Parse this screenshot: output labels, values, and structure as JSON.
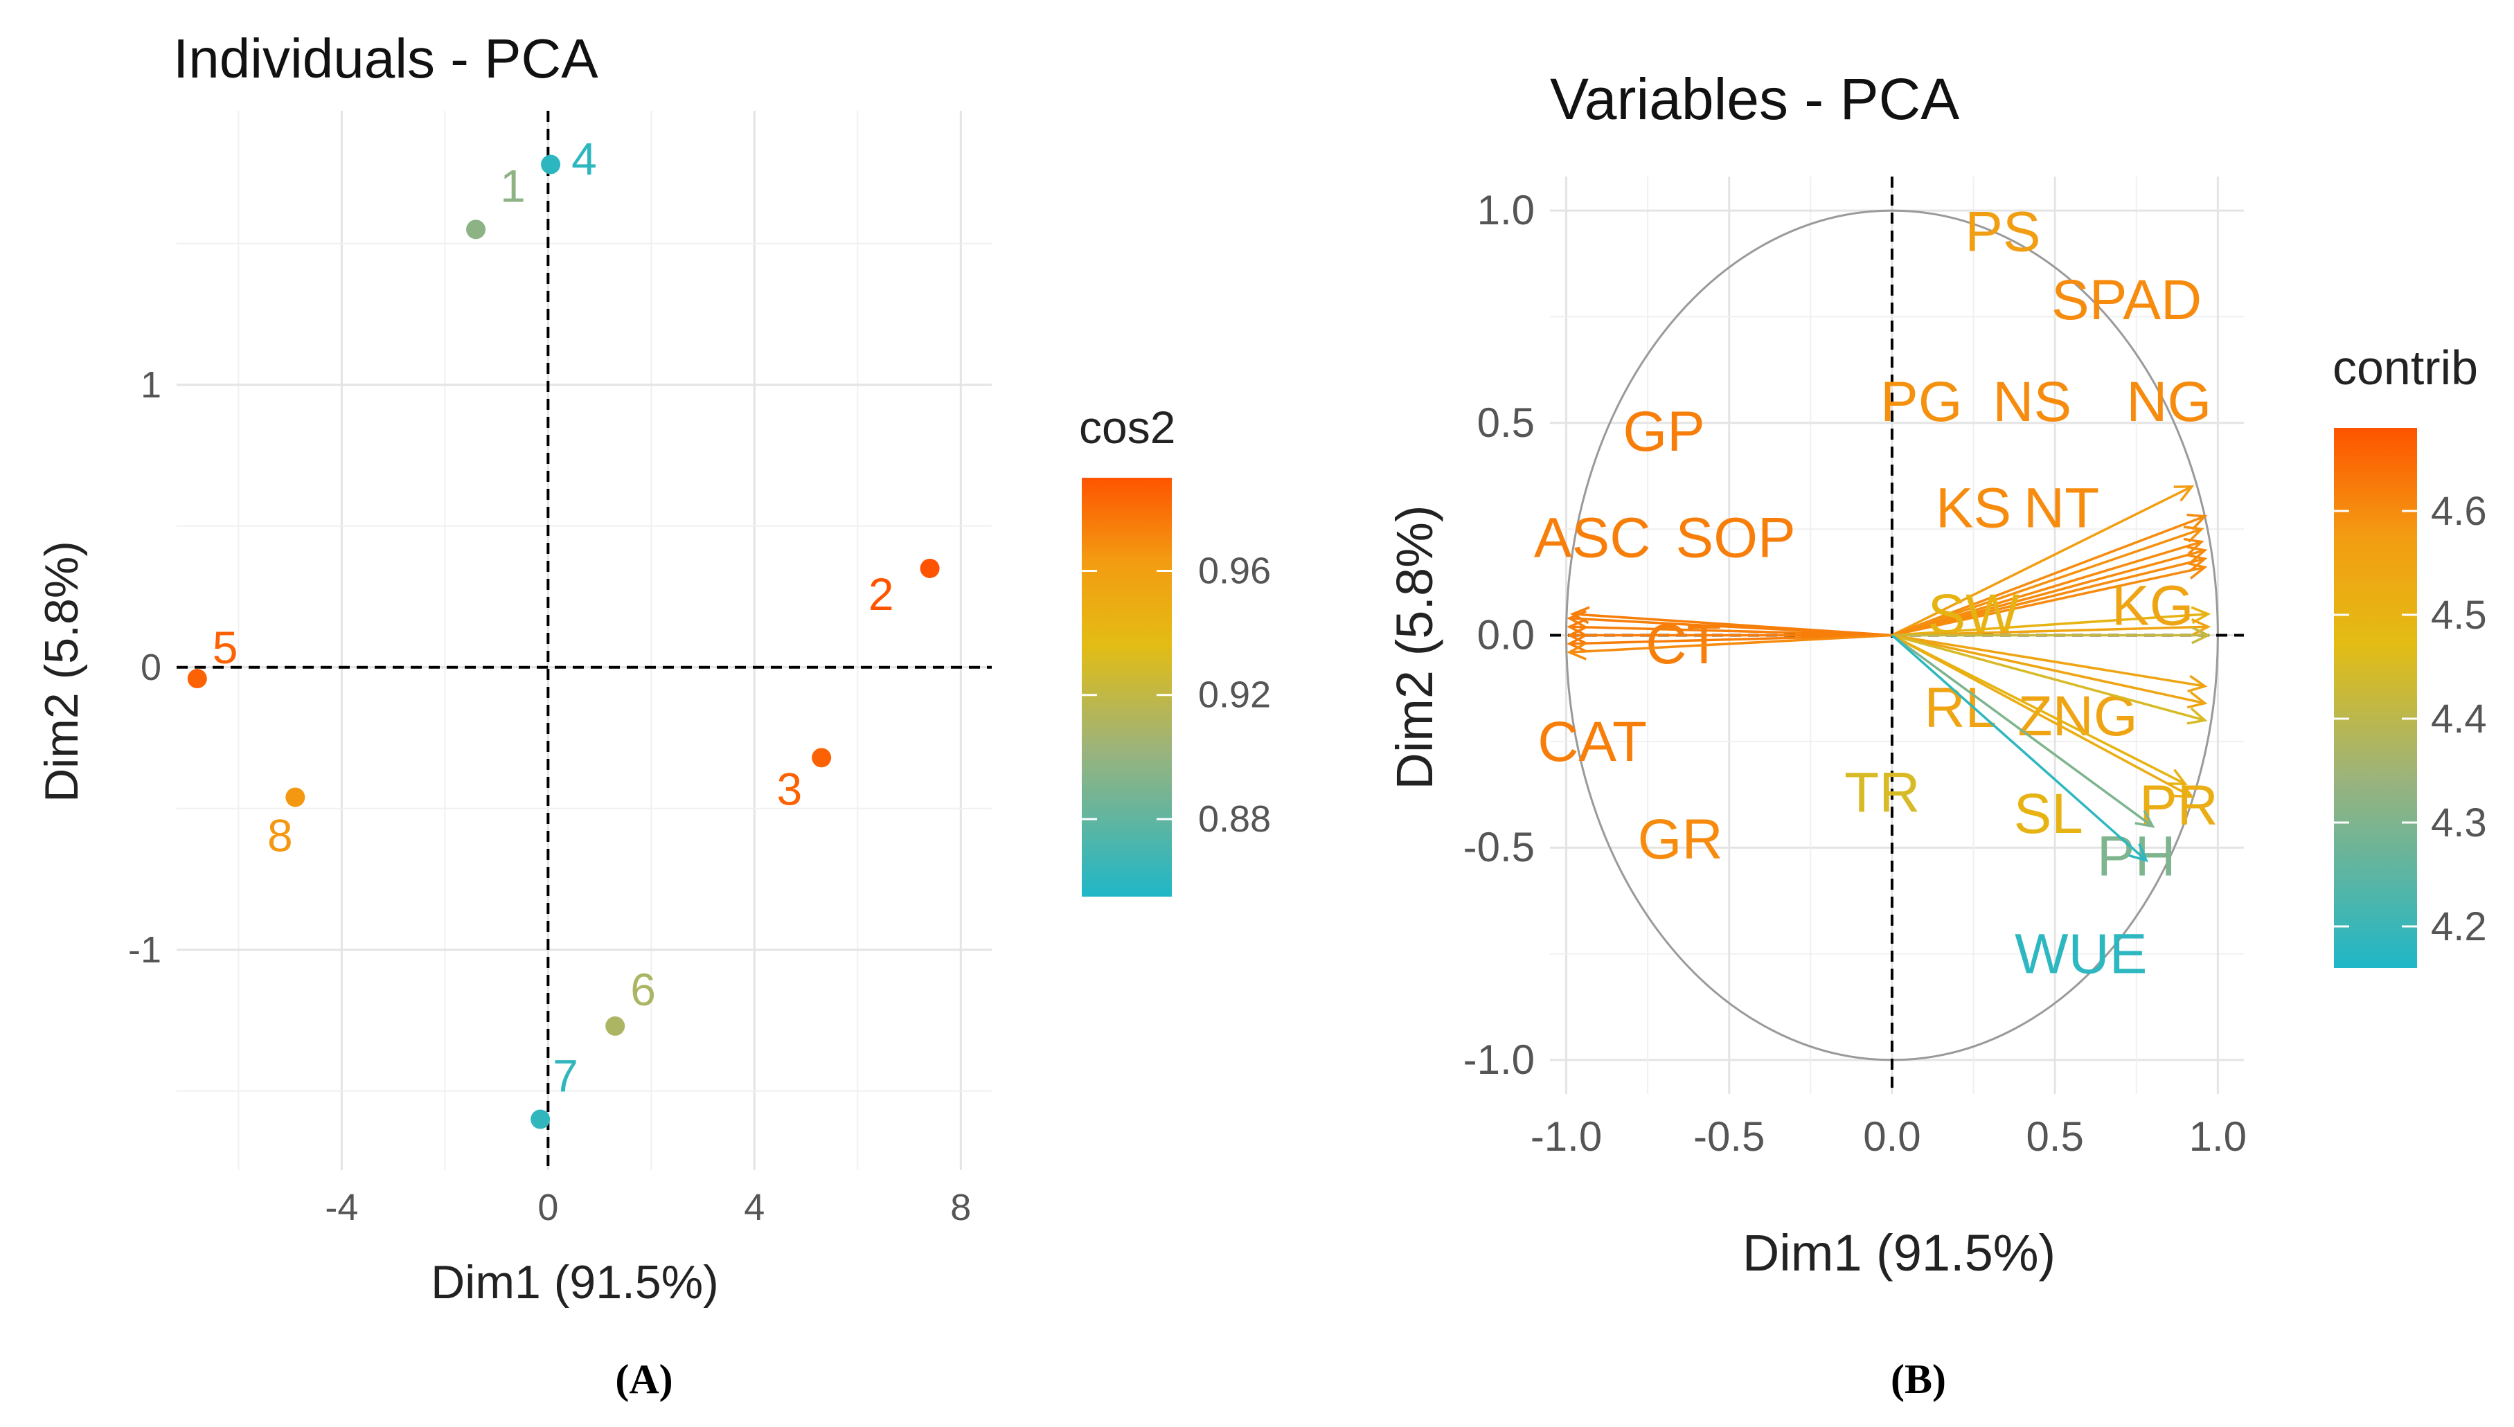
{
  "chart_data": [
    {
      "type": "scatter",
      "title": "Individuals - PCA",
      "xlabel": "Dim1 (91.5%)",
      "ylabel": "Dim2 (5.8%)",
      "xlim": [
        -7.2,
        8.6
      ],
      "ylim": [
        -1.78,
        1.97
      ],
      "x_ticks": [
        -4,
        0,
        4,
        8
      ],
      "x_tick_labels": [
        "-4",
        "0",
        "4",
        "8"
      ],
      "y_ticks": [
        -1,
        0,
        1
      ],
      "y_tick_labels": [
        "-1",
        "0",
        "1"
      ],
      "grid": true,
      "legend": {
        "title": "cos2",
        "placement": "right",
        "ticks": [
          0.88,
          0.92,
          0.96
        ],
        "tick_labels": [
          "0.88",
          "0.92",
          "0.96"
        ],
        "range": [
          0.855,
          0.99
        ]
      },
      "points": [
        {
          "label": "1",
          "x": -1.4,
          "y": 1.55,
          "cos2": 0.897
        },
        {
          "label": "2",
          "x": 7.4,
          "y": 0.35,
          "cos2": 0.99
        },
        {
          "label": "3",
          "x": 5.3,
          "y": -0.32,
          "cos2": 0.985
        },
        {
          "label": "4",
          "x": 0.05,
          "y": 1.78,
          "cos2": 0.86
        },
        {
          "label": "5",
          "x": -6.8,
          "y": -0.04,
          "cos2": 0.985
        },
        {
          "label": "6",
          "x": 1.3,
          "y": -1.27,
          "cos2": 0.91
        },
        {
          "label": "7",
          "x": -0.15,
          "y": -1.6,
          "cos2": 0.862
        },
        {
          "label": "8",
          "x": -4.9,
          "y": -0.46,
          "cos2": 0.965
        }
      ],
      "panel_label": "(A)"
    },
    {
      "type": "scatter",
      "title": "Variables - PCA",
      "xlabel": "Dim1 (91.5%)",
      "ylabel": "Dim2 (5.8%)",
      "xlim": [
        -1.05,
        1.08
      ],
      "ylim": [
        -1.08,
        1.08
      ],
      "x_ticks": [
        -1,
        -0.5,
        0,
        0.5,
        1
      ],
      "x_tick_labels": [
        "-1.0",
        "-0.5",
        "0.0",
        "0.5",
        "1.0"
      ],
      "y_ticks": [
        -1,
        -0.5,
        0,
        0.5,
        1
      ],
      "y_tick_labels": [
        "-1.0",
        "-0.5",
        "0.0",
        "0.5",
        "1.0"
      ],
      "grid": true,
      "legend": {
        "title": "contrib",
        "placement": "right",
        "ticks": [
          4.2,
          4.3,
          4.4,
          4.5,
          4.6
        ],
        "tick_labels": [
          "4.2",
          "4.3",
          "4.4",
          "4.5",
          "4.6"
        ],
        "range": [
          4.16,
          4.68
        ]
      },
      "vectors": [
        {
          "label": "PS",
          "x": 0.92,
          "y": 0.35,
          "lx": 0.34,
          "ly": 0.95,
          "contrib": 4.57
        },
        {
          "label": "SPAD",
          "x": 0.96,
          "y": 0.28,
          "lx": 0.72,
          "ly": 0.79,
          "contrib": 4.6
        },
        {
          "label": "PG",
          "x": 0.95,
          "y": 0.25,
          "lx": 0.09,
          "ly": 0.55,
          "contrib": 4.59
        },
        {
          "label": "NS",
          "x": 0.95,
          "y": 0.22,
          "lx": 0.43,
          "ly": 0.55,
          "contrib": 4.6
        },
        {
          "label": "NG",
          "x": 0.96,
          "y": 0.2,
          "lx": 0.85,
          "ly": 0.55,
          "contrib": 4.6
        },
        {
          "label": "KS",
          "x": 0.96,
          "y": 0.18,
          "lx": 0.25,
          "ly": 0.3,
          "contrib": 4.6
        },
        {
          "label": "NT",
          "x": 0.96,
          "y": 0.16,
          "lx": 0.52,
          "ly": 0.3,
          "contrib": 4.6
        },
        {
          "label": "GP",
          "x": -0.98,
          "y": 0.05,
          "lx": -0.7,
          "ly": 0.48,
          "contrib": 4.62
        },
        {
          "label": "ASC",
          "x": -0.99,
          "y": 0.04,
          "lx": -0.92,
          "ly": 0.23,
          "contrib": 4.62
        },
        {
          "label": "SOP",
          "x": -0.99,
          "y": 0.02,
          "lx": -0.48,
          "ly": 0.23,
          "contrib": 4.62
        },
        {
          "label": "CT",
          "x": -0.99,
          "y": 0.0,
          "lx": -0.64,
          "ly": -0.02,
          "contrib": 4.62
        },
        {
          "label": "CAT",
          "x": -0.99,
          "y": -0.02,
          "lx": -0.92,
          "ly": -0.25,
          "contrib": 4.62
        },
        {
          "label": "GR",
          "x": -0.99,
          "y": -0.04,
          "lx": -0.65,
          "ly": -0.48,
          "contrib": 4.6
        },
        {
          "label": "SW",
          "x": 0.97,
          "y": 0.05,
          "lx": 0.25,
          "ly": 0.05,
          "contrib": 4.5
        },
        {
          "label": "KG",
          "x": 0.97,
          "y": 0.02,
          "lx": 0.8,
          "ly": 0.07,
          "contrib": 4.55
        },
        {
          "label": "",
          "x": 0.97,
          "y": 0.0,
          "contrib": 4.42
        },
        {
          "label": "RL",
          "x": 0.96,
          "y": -0.12,
          "lx": 0.21,
          "ly": -0.17,
          "contrib": 4.55
        },
        {
          "label": "ZNG",
          "x": 0.96,
          "y": -0.16,
          "lx": 0.57,
          "ly": -0.19,
          "contrib": 4.55
        },
        {
          "label": "TR",
          "x": 0.96,
          "y": -0.2,
          "lx": -0.03,
          "ly": -0.37,
          "contrib": 4.45
        },
        {
          "label": "SL",
          "x": 0.9,
          "y": -0.35,
          "lx": 0.48,
          "ly": -0.42,
          "contrib": 4.5
        },
        {
          "label": "PR",
          "x": 0.92,
          "y": -0.38,
          "lx": 0.88,
          "ly": -0.4,
          "contrib": 4.52
        },
        {
          "label": "PH",
          "x": 0.8,
          "y": -0.45,
          "lx": 0.75,
          "ly": -0.52,
          "contrib": 4.3
        },
        {
          "label": "WUE",
          "x": 0.78,
          "y": -0.53,
          "lx": 0.58,
          "ly": -0.75,
          "contrib": 4.18
        }
      ],
      "circle": true,
      "panel_label": "(B)"
    }
  ]
}
